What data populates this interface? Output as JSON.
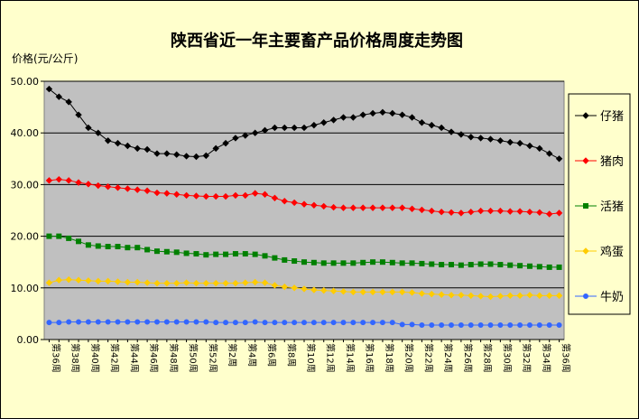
{
  "chart_data": {
    "type": "line",
    "title": "陕西省近一年主要畜产品价格周度走势图",
    "ylabel": "价格(元/公斤)",
    "xlabel": "",
    "ylim": [
      0,
      50
    ],
    "yticks": [
      "0.00",
      "10.00",
      "20.00",
      "30.00",
      "40.00",
      "50.00"
    ],
    "grid": true,
    "legend_position": "right",
    "categories": [
      "第36周",
      "第37周",
      "第38周",
      "第39周",
      "第40周",
      "第41周",
      "第42周",
      "第43周",
      "第44周",
      "第45周",
      "第46周",
      "第47周",
      "第48周",
      "第49周",
      "第50周",
      "第51周",
      "第52周",
      "第1周",
      "第2周",
      "第3周",
      "第4周",
      "第5周",
      "第6周",
      "第7周",
      "第8周",
      "第9周",
      "第10周",
      "第11周",
      "第12周",
      "第13周",
      "第14周",
      "第15周",
      "第16周",
      "第17周",
      "第18周",
      "第19周",
      "第20周",
      "第21周",
      "第22周",
      "第23周",
      "第24周",
      "第25周",
      "第26周",
      "第27周",
      "第28周",
      "第29周",
      "第30周",
      "第31周",
      "第32周",
      "第33周",
      "第34周",
      "第35周",
      "第36周"
    ],
    "label_every": 2,
    "series": [
      {
        "name": "仔猪",
        "color": "#000000",
        "marker": "diamond",
        "values": [
          48.5,
          47.0,
          46.0,
          43.5,
          41.0,
          40.0,
          38.5,
          38.0,
          37.5,
          37.0,
          36.8,
          36.0,
          36.0,
          35.8,
          35.5,
          35.4,
          35.6,
          37.0,
          38.0,
          39.0,
          39.5,
          40.0,
          40.5,
          41.0,
          41.0,
          41.0,
          41.0,
          41.5,
          42.0,
          42.5,
          43.0,
          43.0,
          43.5,
          43.8,
          44.0,
          43.8,
          43.5,
          43.0,
          42.0,
          41.5,
          41.0,
          40.2,
          39.7,
          39.2,
          39.0,
          38.8,
          38.5,
          38.2,
          38.0,
          37.5,
          37.0,
          36.0,
          35.0
        ]
      },
      {
        "name": "猪肉",
        "color": "#ff0000",
        "marker": "diamond",
        "values": [
          30.8,
          31.0,
          30.8,
          30.4,
          30.1,
          29.8,
          29.6,
          29.4,
          29.2,
          29.0,
          28.8,
          28.4,
          28.3,
          28.1,
          27.9,
          27.8,
          27.7,
          27.7,
          27.7,
          27.9,
          27.9,
          28.3,
          28.1,
          27.4,
          26.8,
          26.5,
          26.2,
          26.0,
          25.8,
          25.6,
          25.5,
          25.5,
          25.5,
          25.5,
          25.5,
          25.5,
          25.5,
          25.3,
          25.1,
          24.9,
          24.7,
          24.6,
          24.5,
          24.7,
          24.9,
          24.9,
          24.9,
          24.8,
          24.8,
          24.7,
          24.6,
          24.3,
          24.5
        ]
      },
      {
        "name": "活猪",
        "color": "#008000",
        "marker": "square",
        "values": [
          20.0,
          20.0,
          19.6,
          19.0,
          18.3,
          18.1,
          18.0,
          18.0,
          17.8,
          17.8,
          17.4,
          17.1,
          17.0,
          16.9,
          16.7,
          16.6,
          16.4,
          16.5,
          16.5,
          16.6,
          16.6,
          16.5,
          16.2,
          15.8,
          15.4,
          15.2,
          15.0,
          14.9,
          14.8,
          14.8,
          14.8,
          14.8,
          14.9,
          15.0,
          15.0,
          14.9,
          14.8,
          14.8,
          14.7,
          14.6,
          14.5,
          14.5,
          14.4,
          14.5,
          14.6,
          14.6,
          14.5,
          14.4,
          14.3,
          14.2,
          14.1,
          14.0,
          14.0
        ]
      },
      {
        "name": "鸡蛋",
        "color": "#ffcc00",
        "marker": "diamond",
        "values": [
          11.0,
          11.5,
          11.6,
          11.5,
          11.4,
          11.3,
          11.3,
          11.2,
          11.1,
          11.1,
          11.0,
          10.9,
          10.9,
          10.9,
          11.0,
          10.9,
          10.9,
          10.9,
          10.9,
          10.9,
          11.0,
          11.1,
          11.0,
          10.5,
          10.2,
          10.0,
          9.8,
          9.6,
          9.5,
          9.4,
          9.3,
          9.2,
          9.2,
          9.2,
          9.2,
          9.2,
          9.2,
          9.1,
          8.9,
          8.8,
          8.7,
          8.6,
          8.6,
          8.5,
          8.4,
          8.3,
          8.4,
          8.5,
          8.5,
          8.6,
          8.5,
          8.5,
          8.5
        ]
      },
      {
        "name": "牛奶",
        "color": "#3366ff",
        "marker": "circle",
        "values": [
          3.3,
          3.3,
          3.4,
          3.4,
          3.4,
          3.4,
          3.4,
          3.4,
          3.4,
          3.4,
          3.4,
          3.4,
          3.4,
          3.4,
          3.4,
          3.4,
          3.4,
          3.3,
          3.3,
          3.3,
          3.3,
          3.4,
          3.3,
          3.3,
          3.3,
          3.3,
          3.3,
          3.3,
          3.3,
          3.3,
          3.3,
          3.3,
          3.3,
          3.3,
          3.3,
          3.3,
          2.9,
          2.9,
          2.8,
          2.8,
          2.8,
          2.8,
          2.8,
          2.8,
          2.8,
          2.8,
          2.8,
          2.8,
          2.8,
          2.8,
          2.8,
          2.8,
          2.8
        ]
      }
    ]
  }
}
